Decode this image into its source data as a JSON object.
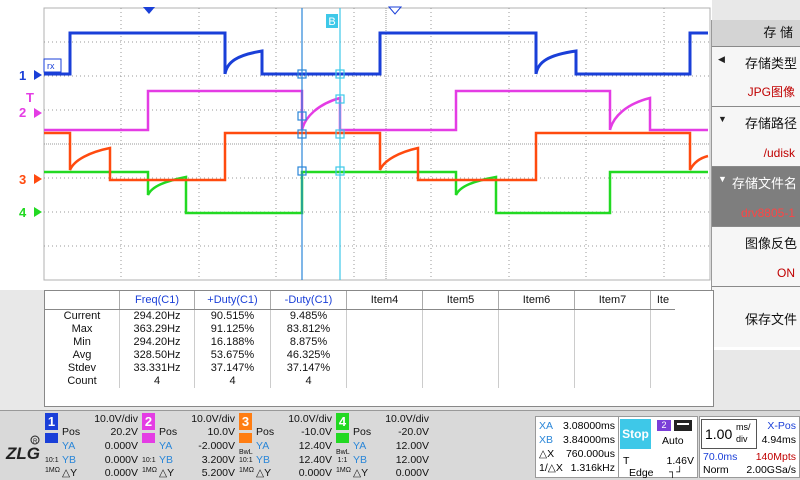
{
  "channels": {
    "ch1": {
      "label": "1",
      "color": "#1a3fd8"
    },
    "ch2": {
      "label": "2",
      "color": "#e43ce4"
    },
    "ch3": {
      "label": "3",
      "color": "#ff4a0f"
    },
    "ch4": {
      "label": "4",
      "color": "#22d922"
    },
    "trigger": {
      "label": "T",
      "color": "#e43ce4"
    }
  },
  "cursor_marker": "B",
  "menu": {
    "title": "存 储",
    "items": [
      {
        "name": "存储类型",
        "value": "JPG图像"
      },
      {
        "name": "存储路径",
        "value": "/udisk"
      },
      {
        "name": "存储文件名",
        "value": "drv8805-1"
      },
      {
        "name": "图像反色",
        "value": "ON"
      },
      {
        "name": "保存文件",
        "value": ""
      }
    ]
  },
  "measure": {
    "headers": [
      "",
      "Freq(C1)",
      "+Duty(C1)",
      "-Duty(C1)",
      "Item4",
      "Item5",
      "Item6",
      "Item7",
      "Ite"
    ],
    "rows": [
      {
        "label": "Current",
        "freq": "294.20Hz",
        "pduty": "90.515%",
        "nduty": "9.485%"
      },
      {
        "label": "Max",
        "freq": "363.29Hz",
        "pduty": "91.125%",
        "nduty": "83.812%"
      },
      {
        "label": "Min",
        "freq": "294.20Hz",
        "pduty": "16.188%",
        "nduty": "8.875%"
      },
      {
        "label": "Avg",
        "freq": "328.50Hz",
        "pduty": "53.675%",
        "nduty": "46.325%"
      },
      {
        "label": "Stdev",
        "freq": "33.331Hz",
        "pduty": "37.147%",
        "nduty": "37.147%"
      },
      {
        "label": "Count",
        "freq": "4",
        "pduty": "4",
        "nduty": "4"
      }
    ]
  },
  "status": {
    "logo": "ZLG",
    "ch": [
      {
        "num": "1",
        "color": "#1a3fd8",
        "div": "10.0V/div",
        "pos": "20.2V",
        "ya": "0.000V",
        "yb": "0.000V",
        "dy": "0.000V",
        "sub1": "10:1",
        "sub2": "1MΩ"
      },
      {
        "num": "2",
        "color": "#e43ce4",
        "div": "10.0V/div",
        "pos": "10.0V",
        "ya": "-2.000V",
        "yb": "3.200V",
        "dy": "5.200V",
        "sub1": "10:1",
        "sub2": "1MΩ"
      },
      {
        "num": "3",
        "color": "#ff7d12",
        "div": "10.0V/div",
        "pos": "-10.0V",
        "ya": "12.40V",
        "yb": "12.40V",
        "dy": "0.000V",
        "sub1": "BwL 10:1",
        "sub2": "1MΩ"
      },
      {
        "num": "4",
        "color": "#22d922",
        "div": "10.0V/div",
        "pos": "-20.0V",
        "ya": "12.00V",
        "yb": "12.00V",
        "dy": "0.000V",
        "sub1": "BwL 1:1",
        "sub2": "1MΩ"
      }
    ],
    "labels": {
      "pos": "Pos",
      "ya": "YA",
      "yb": "YB",
      "dy": "△Y"
    },
    "cursors": {
      "xa_label": "XA",
      "xa": "3.08000ms",
      "xb_label": "XB",
      "xb": "3.84000ms",
      "dx_label": "△X",
      "dx": "760.000us",
      "inv_label": "1/△X",
      "inv": "1.316kHz"
    },
    "trigger": {
      "run": "Stop",
      "src": "2",
      "mode": "Auto",
      "t_label": "T",
      "level": "1.46V",
      "type": "Edge"
    },
    "timebase": {
      "div_num": "1.00",
      "div_unit_top": "ms/",
      "div_unit_bot": "div",
      "xpos_label": "X-Pos",
      "xpos": "4.94ms",
      "delay": "70.0ms",
      "mem": "140Mpts",
      "acq": "Norm",
      "rate": "2.00GSa/s"
    }
  }
}
